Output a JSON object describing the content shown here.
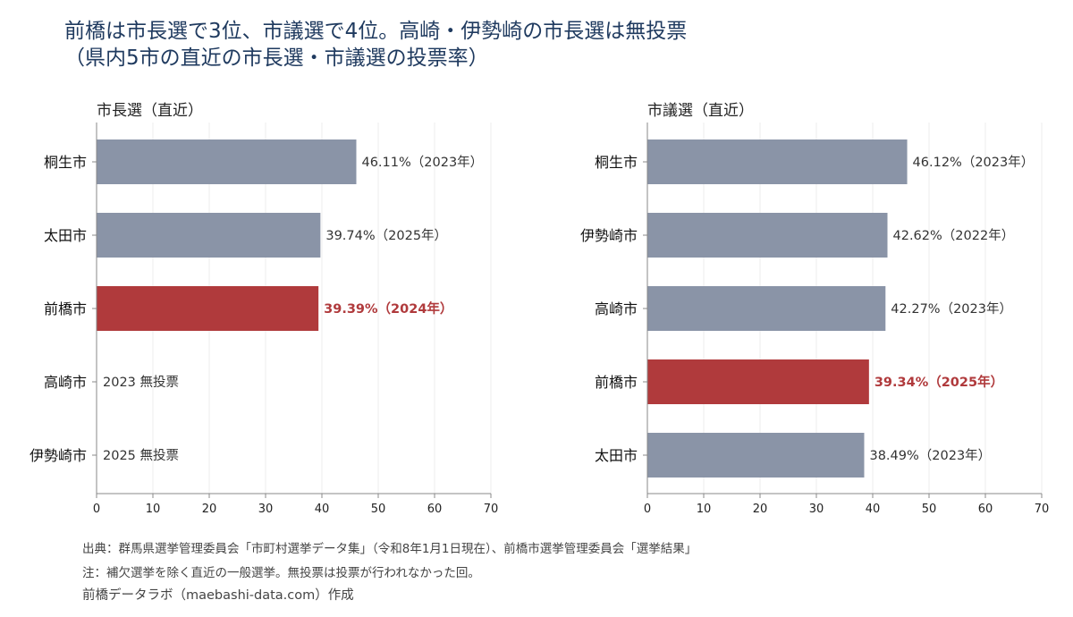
{
  "title": {
    "line1": "前橋は市長選で3位、市議選で4位。高崎・伊勢崎の市長選は無投票",
    "line2": "（県内5市の直近の市長選・市議選の投票率）"
  },
  "chart_data": [
    {
      "type": "bar",
      "orientation": "horizontal",
      "title": "市長選（直近）",
      "categories": [
        "桐生市",
        "太田市",
        "前橋市",
        "高崎市",
        "伊勢崎市"
      ],
      "values": [
        46.11,
        39.74,
        39.39,
        null,
        null
      ],
      "labels": [
        "46.11%（2023年）",
        "39.74%（2025年）",
        "39.39%（2024年）",
        "2023 無投票",
        "2025 無投票"
      ],
      "highlight": "前橋市",
      "xlim": [
        0,
        70
      ],
      "xticks": [
        0,
        10,
        20,
        30,
        40,
        50,
        60,
        70
      ],
      "grid": "vertical"
    },
    {
      "type": "bar",
      "orientation": "horizontal",
      "title": "市議選（直近）",
      "categories": [
        "桐生市",
        "伊勢崎市",
        "高崎市",
        "前橋市",
        "太田市"
      ],
      "values": [
        46.12,
        42.62,
        42.27,
        39.34,
        38.49
      ],
      "labels": [
        "46.12%（2023年）",
        "42.62%（2022年）",
        "42.27%（2023年）",
        "39.34%（2025年）",
        "38.49%（2023年）"
      ],
      "highlight": "前橋市",
      "xlim": [
        0,
        70
      ],
      "xticks": [
        0,
        10,
        20,
        30,
        40,
        50,
        60,
        70
      ],
      "grid": "vertical"
    }
  ],
  "colors": {
    "bar": "#8a94a7",
    "highlight": "#b03a3c",
    "title": "#1f3a5f"
  },
  "footer": {
    "source": "出典：群馬県選挙管理委員会「市町村選挙データ集」（令和8年1月1日現在）、前橋市選挙管理委員会「選挙結果」",
    "note": "注：補欠選挙を除く直近の一般選挙。無投票は投票が行われなかった回。",
    "credit": "前橋データラボ（maebashi-data.com）作成"
  }
}
